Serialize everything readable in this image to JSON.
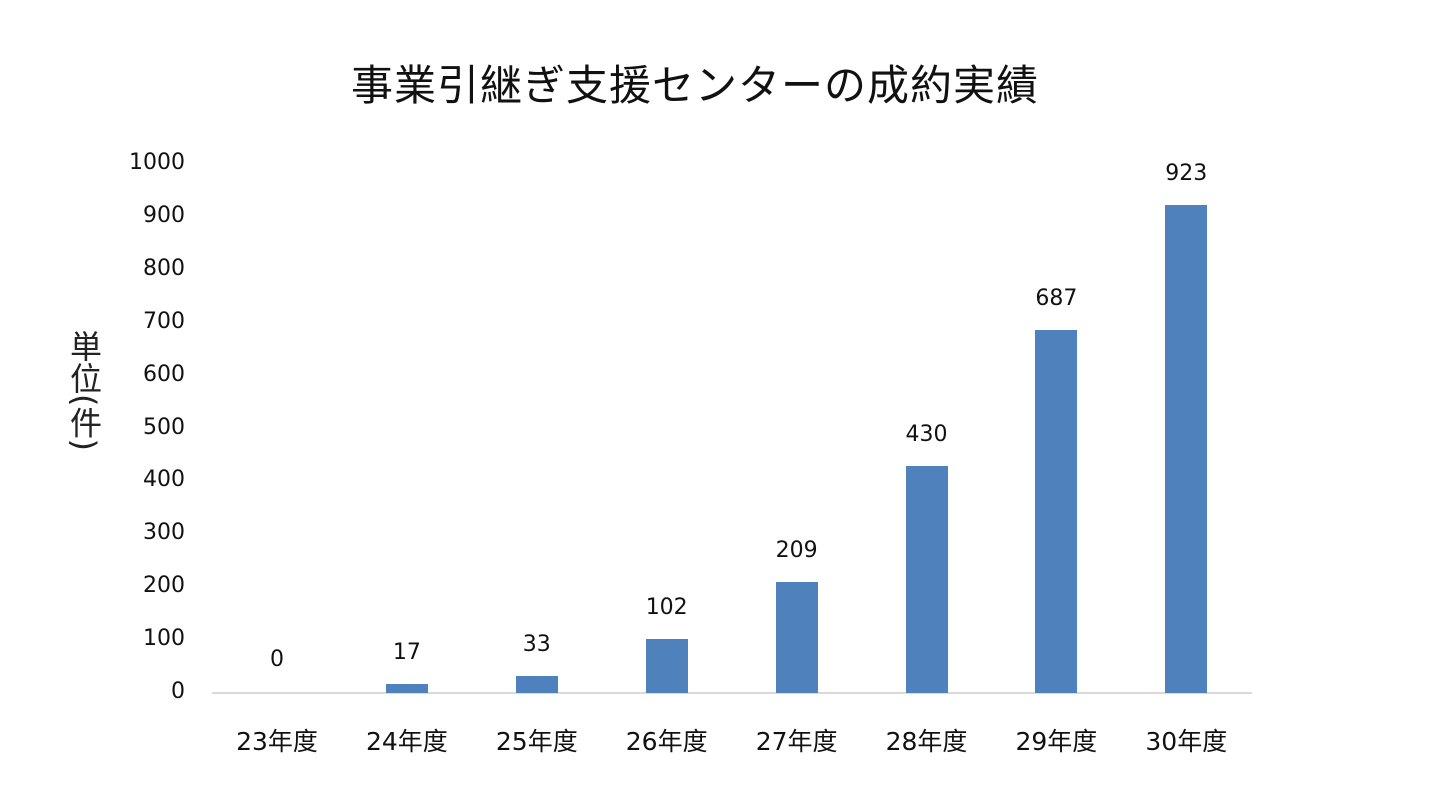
{
  "chart_data": {
    "type": "bar",
    "title": "事業引継ぎ支援センターの成約実績",
    "xlabel": "",
    "ylabel": "単位(件)",
    "categories": [
      "23年度",
      "24年度",
      "25年度",
      "26年度",
      "27年度",
      "28年度",
      "29年度",
      "30年度"
    ],
    "values": [
      0,
      17,
      33,
      102,
      209,
      430,
      687,
      923
    ],
    "ylim": [
      0,
      1000
    ],
    "yticks": [
      0,
      100,
      200,
      300,
      400,
      500,
      600,
      700,
      800,
      900,
      1000
    ],
    "grid": false,
    "legend": null,
    "bar_color": "#4f81bd",
    "data_labels": true
  }
}
